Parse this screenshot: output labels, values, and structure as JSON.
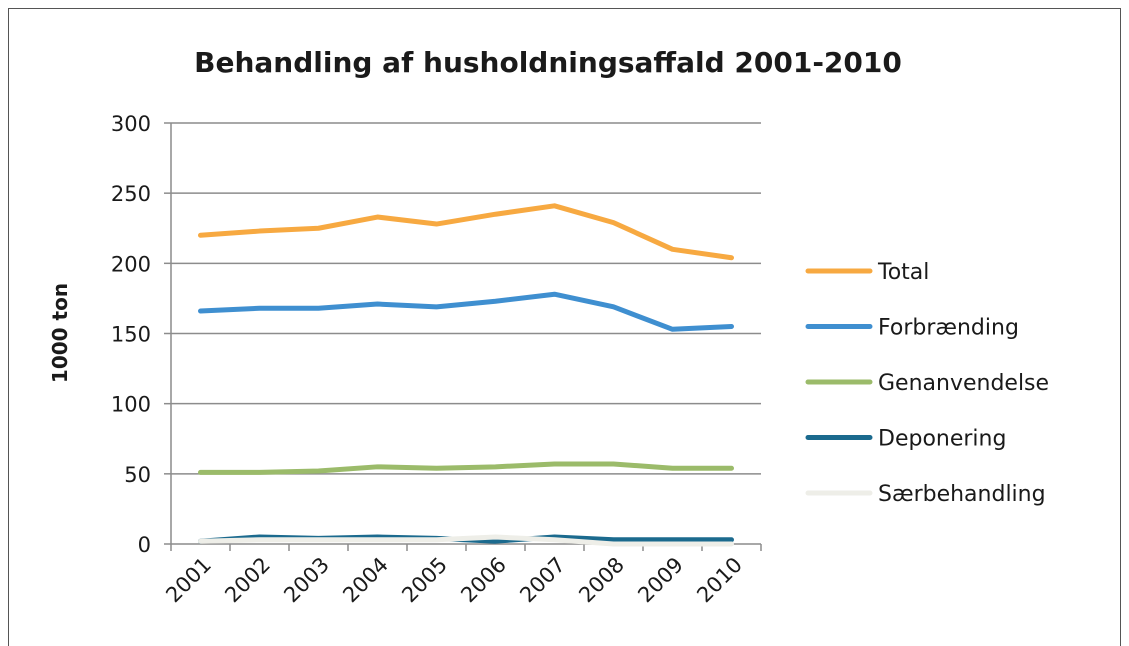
{
  "chart_data": {
    "type": "line",
    "title": "Behandling af husholdningsaffald 2001-2010",
    "xlabel": "",
    "ylabel": "1000 ton",
    "ylim": [
      0,
      300
    ],
    "yticks": [
      "0",
      "50",
      "100",
      "150",
      "200",
      "250",
      "300"
    ],
    "categories": [
      "2001",
      "2002",
      "2003",
      "2004",
      "2005",
      "2006",
      "2007",
      "2008",
      "2009",
      "2010"
    ],
    "grid": true,
    "legend_position": "right",
    "series": [
      {
        "name": "Total",
        "color": "#F7A941",
        "values": [
          220,
          223,
          225,
          233,
          228,
          235,
          241,
          229,
          210,
          204
        ]
      },
      {
        "name": "Forbrænding",
        "color": "#3F8FD0",
        "values": [
          166,
          168,
          168,
          171,
          169,
          173,
          178,
          169,
          153,
          155
        ]
      },
      {
        "name": "Genanvendelse",
        "color": "#9BBB6A",
        "values": [
          51,
          51,
          52,
          55,
          54,
          55,
          57,
          57,
          54,
          54
        ]
      },
      {
        "name": "Deponering",
        "color": "#1B6A8E",
        "values": [
          2,
          5,
          4,
          5,
          4,
          2,
          5,
          3,
          3,
          3
        ]
      },
      {
        "name": "Særbehandling",
        "color": "#EEEEE8",
        "values": [
          2,
          3,
          3,
          3,
          3,
          5,
          3,
          0,
          0,
          0
        ]
      }
    ]
  }
}
